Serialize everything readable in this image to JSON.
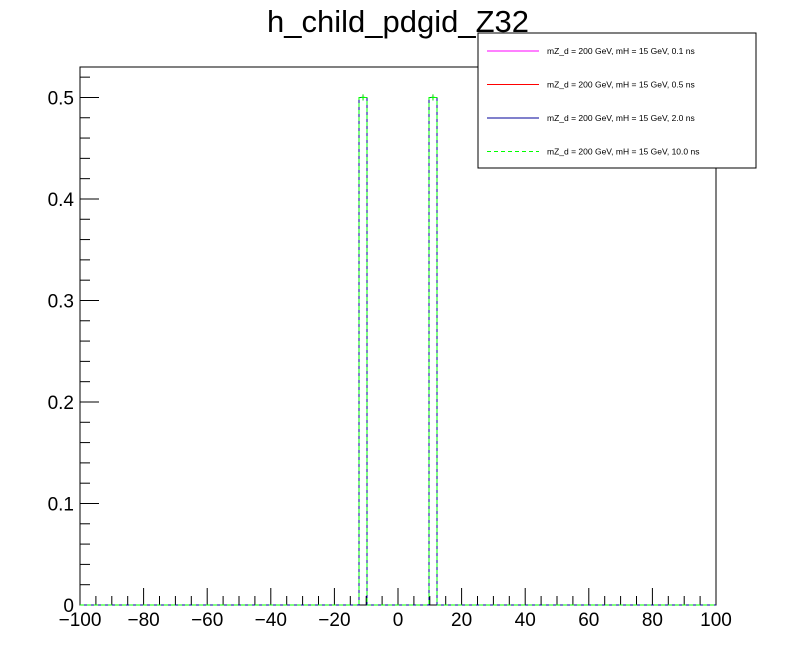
{
  "chart_data": {
    "type": "histogram",
    "title": "h_child_pdgid_Z32",
    "xlabel": "",
    "ylabel": "",
    "xlim": [
      -100,
      100
    ],
    "ylim": [
      0,
      0.53
    ],
    "bin_width": 2.5,
    "x_ticks": [
      "−100",
      "−80",
      "−60",
      "−40",
      "−20",
      "0",
      "20",
      "40",
      "60",
      "80",
      "100"
    ],
    "x_tick_values": [
      -100,
      -80,
      -60,
      -40,
      -20,
      0,
      20,
      40,
      60,
      80,
      100
    ],
    "y_ticks": [
      "0",
      "0.1",
      "0.2",
      "0.3",
      "0.4",
      "0.5"
    ],
    "y_tick_values": [
      0,
      0.1,
      0.2,
      0.3,
      0.4,
      0.5
    ],
    "grid": false,
    "legend_position": "top-right",
    "series": [
      {
        "name": "mZ_d = 200 GeV, mH = 15 GeV, 0.1 ns",
        "color": "#ff00ff",
        "style": "solid",
        "bins": [
          {
            "x": -11,
            "value": 0.5
          },
          {
            "x": 11,
            "value": 0.5
          }
        ]
      },
      {
        "name": "mZ_d = 200 GeV, mH = 15 GeV, 0.5 ns",
        "color": "#ff0000",
        "style": "solid",
        "bins": [
          {
            "x": -11,
            "value": 0.5
          },
          {
            "x": 11,
            "value": 0.5
          }
        ]
      },
      {
        "name": "mZ_d = 200 GeV, mH = 15 GeV, 2.0 ns",
        "color": "#000099",
        "style": "solid",
        "bins": [
          {
            "x": -11,
            "value": 0.5
          },
          {
            "x": 11,
            "value": 0.5
          }
        ]
      },
      {
        "name": "mZ_d = 200 GeV, mH = 15 GeV, 10.0 ns",
        "color": "#00ff00",
        "style": "dashed",
        "bins": [
          {
            "x": -11,
            "value": 0.5
          },
          {
            "x": 11,
            "value": 0.5
          }
        ]
      }
    ]
  }
}
